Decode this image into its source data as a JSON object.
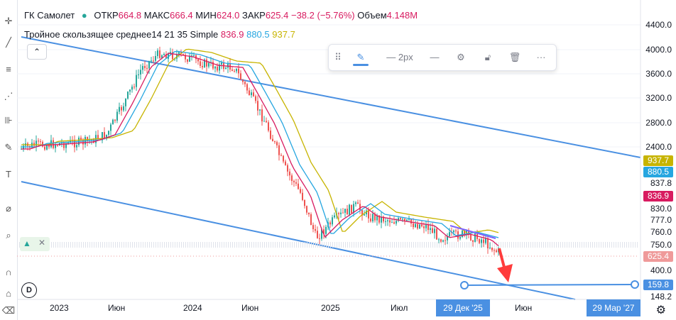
{
  "legend": {
    "symbol": "ГК Самолет",
    "open_label": "ОТКР",
    "open": "664.8",
    "high_label": "МАКС",
    "high": "666.4",
    "low_label": "МИН",
    "low": "624.0",
    "close_label": "ЗАКР",
    "close": "625.4",
    "change": "−38.2 (−5.76%)",
    "volume_label": "Объем",
    "volume": "4.148M"
  },
  "indicator": {
    "name": "Тройное скользящее среднее14 21 35 Simple",
    "v1": "836.9",
    "v2": "880.5",
    "v3": "937.7"
  },
  "drawbar": {
    "width_label": "2px"
  },
  "y_axis_labels": [
    "4400.0",
    "4000.0",
    "3600.0",
    "3200.0",
    "2800.0",
    "2400.0",
    "837.8",
    "830.0",
    "777.0",
    "760.0",
    "750.0",
    "400.0",
    "148.2"
  ],
  "price_tags": [
    {
      "value": "937.7",
      "color": "#c7b400"
    },
    {
      "value": "880.5",
      "color": "#26a6e0"
    },
    {
      "value": "836.9",
      "color": "#d81b60"
    },
    {
      "value": "625.4",
      "color": "#ef9a9a"
    },
    {
      "value": "159.8",
      "color": "#4a90e2"
    }
  ],
  "x_axis_labels": [
    "2023",
    "Июн",
    "2024",
    "Июн",
    "2025",
    "Июл",
    "Июн"
  ],
  "x_tags": [
    "29 Дек '25",
    "29 Мар '27"
  ],
  "d_button": "D",
  "colors": {
    "up": "#26a69a",
    "down": "#ef5350",
    "ma14": "#d81b60",
    "ma21": "#26a6e0",
    "ma35": "#c7b400",
    "trend": "#4a90e2"
  }
}
